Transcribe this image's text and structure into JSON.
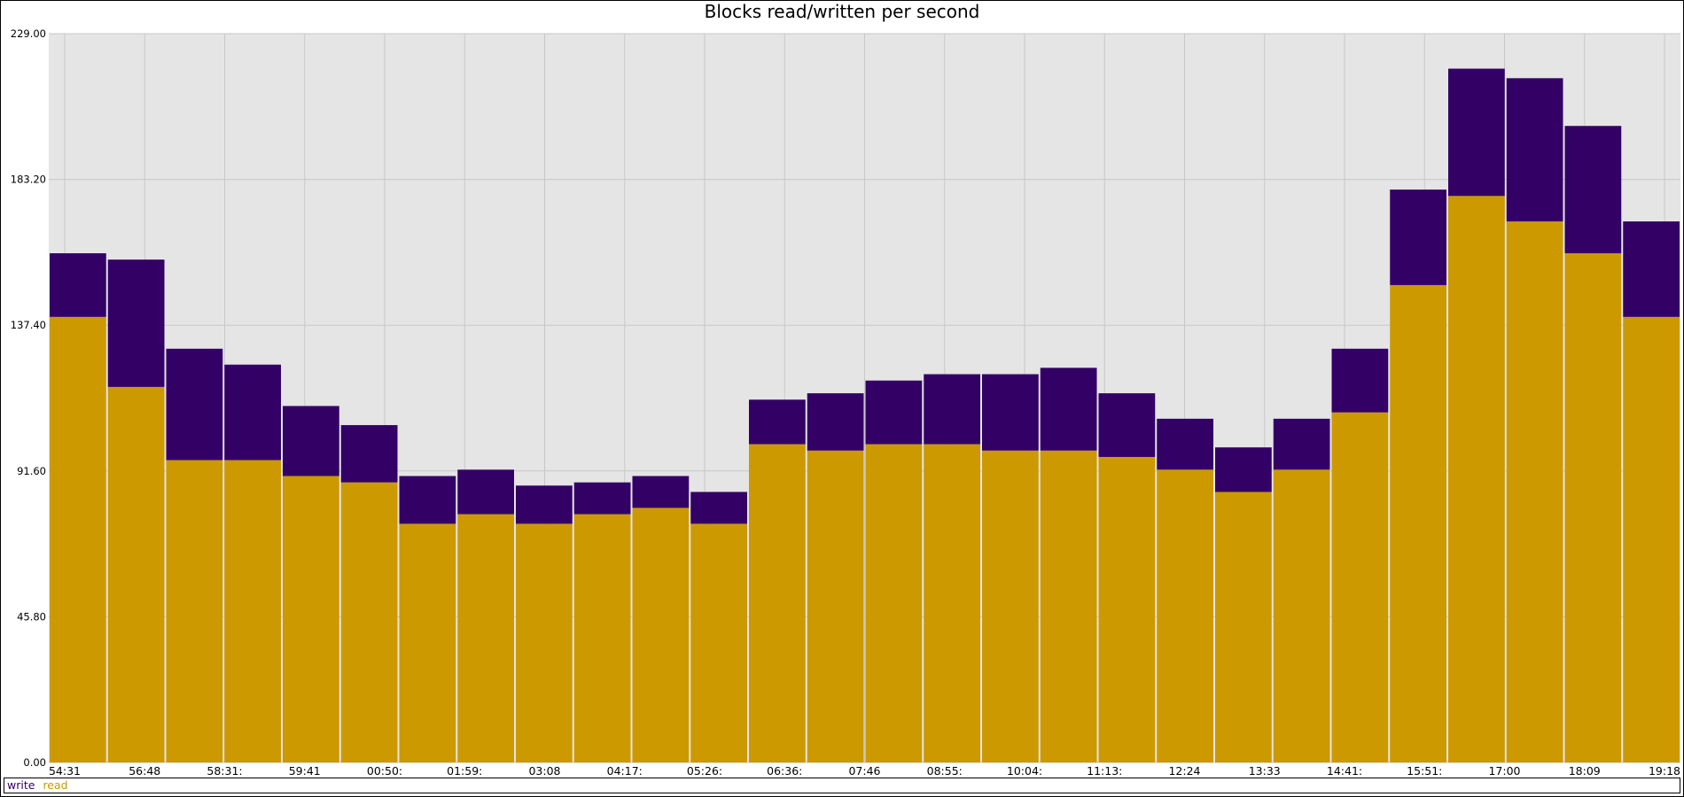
{
  "chart_data": {
    "type": "bar",
    "title": "Blocks read/written per second",
    "xlabel": "",
    "ylabel": "",
    "ylim": [
      0,
      229
    ],
    "y_ticks": [
      "0.00",
      "45.80",
      "91.60",
      "137.40",
      "183.20",
      "229.00"
    ],
    "x_tick_labels": [
      "54:31",
      "56:48",
      "58:31:",
      "59:41",
      "00:50:",
      "01:59:",
      "03:08",
      "04:17:",
      "05:26:",
      "06:36:",
      "07:46",
      "08:55:",
      "10:04:",
      "11:13:",
      "12:24",
      "13:33",
      "14:41:",
      "15:51:",
      "17:00",
      "18:09",
      "19:18"
    ],
    "stacked": true,
    "grid": true,
    "legend_position": "bottom",
    "series": [
      {
        "name": "write",
        "color": "#330066",
        "values": [
          20,
          40,
          35,
          30,
          22,
          18,
          15,
          14,
          12,
          10,
          10,
          10,
          14,
          18,
          20,
          22,
          24,
          26,
          20,
          16,
          14,
          16,
          20,
          30,
          40,
          45,
          40,
          30
        ]
      },
      {
        "name": "read",
        "color": "#cc9900",
        "values": [
          140,
          118,
          95,
          95,
          90,
          88,
          75,
          78,
          75,
          78,
          80,
          75,
          100,
          98,
          100,
          100,
          98,
          98,
          96,
          92,
          85,
          92,
          110,
          150,
          178,
          170,
          160,
          140
        ]
      }
    ]
  },
  "legend": {
    "write_label": "write",
    "read_label": "read"
  },
  "colors": {
    "background": "#e5e5e5",
    "grid": "#c8c8c8",
    "write": "#330066",
    "read": "#cc9900",
    "read_shade": "#b08a55"
  }
}
